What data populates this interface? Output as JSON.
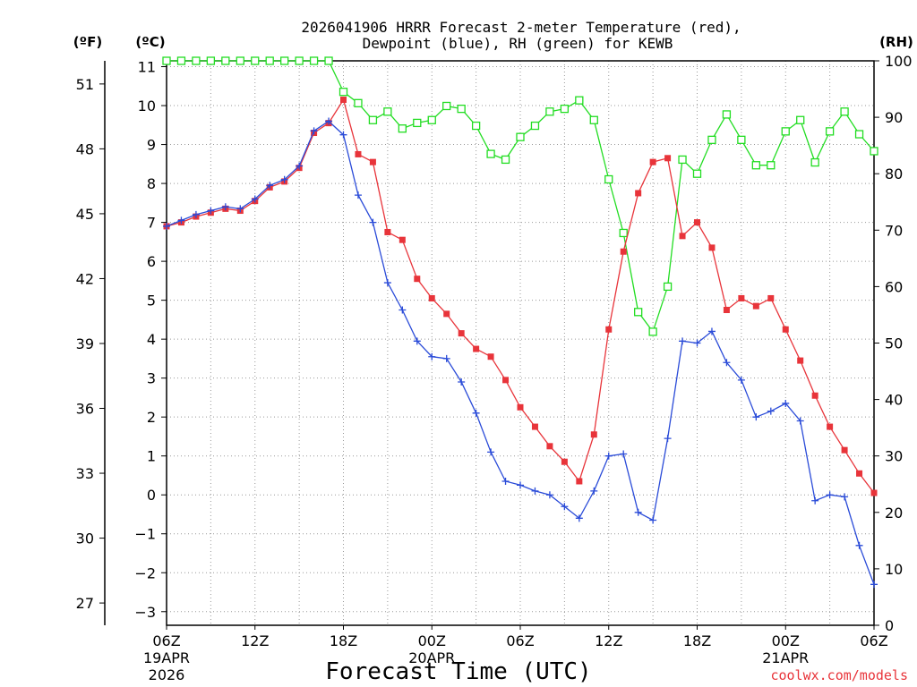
{
  "chart_data": {
    "type": "line",
    "title_line1": "2026041906 HRRR Forecast 2-meter Temperature (red),",
    "title_line2": "Dewpoint (blue), RH (green) for KEWB",
    "xlabel": "Forecast Time (UTC)",
    "unit_labels": {
      "fahrenheit": "(ºF)",
      "celsius": "(ºC)",
      "rh": "(RH)"
    },
    "watermark": "coolwx.com/models",
    "x_range_hours": [
      0,
      48
    ],
    "ylim_c": [
      -3.35,
      11.15
    ],
    "ylim_rh": [
      0,
      100
    ],
    "x_ticks": [
      {
        "hour": 0,
        "label": "06Z",
        "sub1": "19APR",
        "sub2": "2026"
      },
      {
        "hour": 6,
        "label": "12Z",
        "sub1": "",
        "sub2": ""
      },
      {
        "hour": 12,
        "label": "18Z",
        "sub1": "",
        "sub2": ""
      },
      {
        "hour": 18,
        "label": "00Z",
        "sub1": "20APR",
        "sub2": ""
      },
      {
        "hour": 24,
        "label": "06Z",
        "sub1": "",
        "sub2": ""
      },
      {
        "hour": 30,
        "label": "12Z",
        "sub1": "",
        "sub2": ""
      },
      {
        "hour": 36,
        "label": "18Z",
        "sub1": "",
        "sub2": ""
      },
      {
        "hour": 42,
        "label": "00Z",
        "sub1": "21APR",
        "sub2": ""
      },
      {
        "hour": 48,
        "label": "06Z",
        "sub1": "",
        "sub2": ""
      }
    ],
    "celsius_ticks": [
      -3,
      -2,
      -1,
      0,
      1,
      2,
      3,
      4,
      5,
      6,
      7,
      8,
      9,
      10,
      11
    ],
    "fahrenheit_ticks": [
      27,
      30,
      33,
      36,
      39,
      42,
      45,
      48,
      51
    ],
    "rh_ticks": [
      0,
      10,
      20,
      30,
      40,
      50,
      60,
      70,
      80,
      90,
      100
    ],
    "series": [
      {
        "name": "2-meter Temperature (°C)",
        "color": "#e8343a",
        "marker": "filled-square",
        "hours": [
          0,
          1,
          2,
          3,
          4,
          5,
          6,
          7,
          8,
          9,
          10,
          11,
          12,
          13,
          14,
          15,
          16,
          17,
          18,
          19,
          20,
          21,
          22,
          23,
          24,
          25,
          26,
          27,
          28,
          29,
          30,
          31,
          32,
          33,
          34,
          35,
          36,
          37,
          38,
          39,
          40,
          41,
          42,
          43,
          44,
          45,
          46,
          47,
          48
        ],
        "values": [
          6.9,
          7.0,
          7.15,
          7.25,
          7.35,
          7.3,
          7.55,
          7.9,
          8.05,
          8.4,
          9.3,
          9.55,
          10.15,
          8.75,
          8.55,
          6.75,
          6.55,
          5.55,
          5.05,
          4.65,
          4.15,
          3.75,
          3.55,
          2.95,
          2.25,
          1.75,
          1.25,
          0.85,
          0.35,
          1.55,
          4.25,
          6.25,
          7.75,
          8.55,
          8.65,
          6.65,
          7.0,
          6.35,
          4.75,
          5.05,
          4.85,
          5.05,
          4.25,
          3.45,
          2.55,
          1.75,
          1.15,
          0.55,
          0.05
        ]
      },
      {
        "name": "Dewpoint (°C)",
        "color": "#2a4bd8",
        "marker": "plus",
        "hours": [
          0,
          1,
          2,
          3,
          4,
          5,
          6,
          7,
          8,
          9,
          10,
          11,
          12,
          13,
          14,
          15,
          16,
          17,
          18,
          19,
          20,
          21,
          22,
          23,
          24,
          25,
          26,
          27,
          28,
          29,
          30,
          31,
          32,
          33,
          34,
          35,
          36,
          37,
          38,
          39,
          40,
          41,
          42,
          43,
          44,
          45,
          46,
          47,
          48
        ],
        "values": [
          6.9,
          7.05,
          7.2,
          7.3,
          7.4,
          7.35,
          7.6,
          7.95,
          8.1,
          8.45,
          9.35,
          9.6,
          9.25,
          7.7,
          7.0,
          5.45,
          4.75,
          3.95,
          3.55,
          3.5,
          2.9,
          2.1,
          1.1,
          0.35,
          0.25,
          0.1,
          0.0,
          -0.3,
          -0.6,
          0.1,
          1.0,
          1.05,
          -0.45,
          -0.65,
          1.45,
          3.95,
          3.9,
          4.2,
          3.4,
          2.95,
          2.0,
          2.15,
          2.35,
          1.9,
          -0.15,
          -0.0,
          -0.05,
          -1.3,
          -2.3
        ]
      },
      {
        "name": "RH (%)",
        "color": "#22dd22",
        "marker": "open-square",
        "hours": [
          0,
          1,
          2,
          3,
          4,
          5,
          6,
          7,
          8,
          9,
          10,
          11,
          12,
          13,
          14,
          15,
          16,
          17,
          18,
          19,
          20,
          21,
          22,
          23,
          24,
          25,
          26,
          27,
          28,
          29,
          30,
          31,
          32,
          33,
          34,
          35,
          36,
          37,
          38,
          39,
          40,
          41,
          42,
          43,
          44,
          45,
          46,
          47,
          48
        ],
        "values": [
          100,
          100,
          100,
          100,
          100,
          100,
          100,
          100,
          100,
          100,
          100,
          100,
          94.5,
          92.5,
          89.5,
          91,
          88,
          89,
          89.5,
          92,
          91.5,
          88.5,
          83.5,
          82.5,
          86.5,
          88.5,
          91,
          91.5,
          93,
          89.5,
          79,
          69.5,
          55.5,
          52,
          60,
          82.5,
          80,
          86,
          90.5,
          86,
          81.5,
          81.5,
          87.5,
          89.5,
          82,
          87.5,
          91,
          87,
          84
        ]
      }
    ]
  }
}
